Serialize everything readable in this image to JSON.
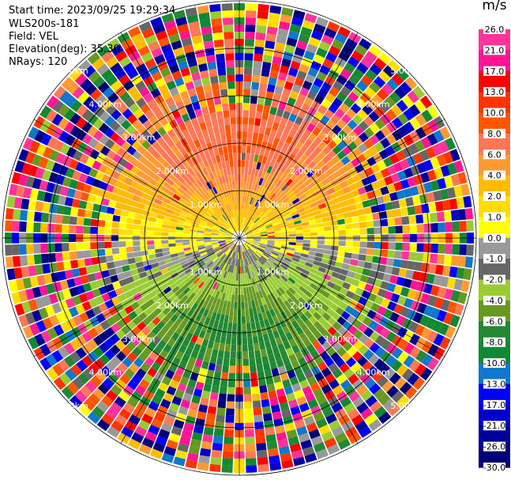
{
  "header": {
    "start_time": "Start time: 2023/09/25 19:29:34",
    "instrument": "WLS200s-181",
    "field": "Field: VEL",
    "elevation": "Elevation(deg): 35.30",
    "nrays": "NRays: 120"
  },
  "colorbar": {
    "unit": "m/s",
    "ticks": [
      "26.0",
      "21.0",
      "17.0",
      "13.0",
      "10.0",
      "8.0",
      "6.0",
      "4.0",
      "2.0",
      "1.0",
      "0.0",
      "-1.0",
      "-2.0",
      "-4.0",
      "-6.0",
      "-8.0",
      "-10.0",
      "-13.0",
      "-17.0",
      "-21.0",
      "-26.0",
      "-30.0"
    ],
    "colors": [
      "#ff3399",
      "#ff1493",
      "#ff0000",
      "#ff3300",
      "#ff5500",
      "#ff7755",
      "#ff9933",
      "#ffbb00",
      "#ffdd00",
      "#ffff00",
      "#999999",
      "#666666",
      "#99cc33",
      "#669922",
      "#228833",
      "#118833",
      "#1177cc",
      "#0000ff",
      "#0000cc",
      "#000099",
      "#000077"
    ]
  },
  "chart_data": {
    "type": "ppi",
    "field": "VEL",
    "units": "m/s",
    "nrays": 120,
    "elevation_deg": 35.3,
    "range_rings_km": [
      1.0,
      2.0,
      3.0,
      4.0,
      5.0
    ],
    "ring_labels": [
      "1.00km",
      "2.00km",
      "3.00km",
      "4.00km",
      "5.00km"
    ],
    "azimuth_lines_deg": [
      0,
      30,
      60,
      90,
      120,
      150,
      180,
      210,
      240,
      270,
      300,
      330
    ],
    "vmin": -30.0,
    "vmax": 26.0
  }
}
